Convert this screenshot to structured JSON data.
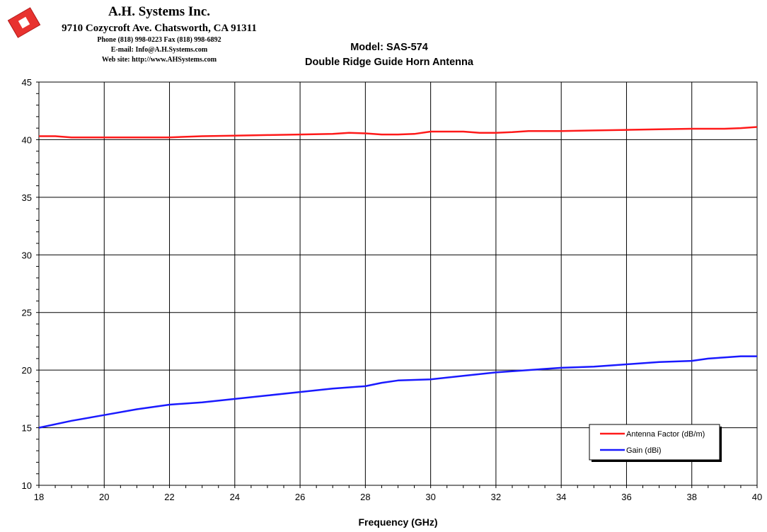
{
  "header": {
    "company": "A.H. Systems Inc.",
    "address": "9710 Cozycroft Ave. Chatsworth, CA 91311",
    "phone": "Phone (818) 998-0223 Fax (818) 998-6892",
    "email": "E-mail: Info@A.H.Systems.com",
    "web": "Web site: http://www.AHSystems.com"
  },
  "colors": {
    "antenna_factor": "#ff1a1a",
    "gain": "#1a1aff",
    "logo": "#e8322f",
    "grid": "#000000"
  },
  "chart_data": {
    "type": "line",
    "title": "Model: SAS-574",
    "subtitle": "Double Ridge Guide Horn Antenna",
    "xlabel": "Frequency (GHz)",
    "ylabel": "",
    "xlim": [
      18,
      40
    ],
    "ylim": [
      10,
      45
    ],
    "xticks": [
      18,
      20,
      22,
      24,
      26,
      28,
      30,
      32,
      34,
      36,
      38,
      40
    ],
    "yticks": [
      10,
      15,
      20,
      25,
      30,
      35,
      40,
      45
    ],
    "grid": true,
    "legend_position": "bottom-right",
    "series": [
      {
        "name": "Antenna Factor (dB/m)",
        "color": "#ff1a1a",
        "x": [
          18,
          18.5,
          19,
          20,
          21,
          22,
          23,
          24,
          25,
          26,
          27,
          27.5,
          28,
          28.5,
          29,
          29.5,
          30,
          31,
          31.5,
          32,
          32.5,
          33,
          34,
          35,
          36,
          37,
          38,
          39,
          39.5,
          40
        ],
        "y": [
          40.3,
          40.3,
          40.2,
          40.2,
          40.2,
          40.2,
          40.3,
          40.35,
          40.4,
          40.45,
          40.5,
          40.6,
          40.55,
          40.45,
          40.45,
          40.5,
          40.7,
          40.7,
          40.6,
          40.6,
          40.65,
          40.75,
          40.75,
          40.8,
          40.85,
          40.9,
          40.95,
          40.95,
          41.0,
          41.1
        ]
      },
      {
        "name": "Gain (dBi)",
        "color": "#1a1aff",
        "x": [
          18,
          19,
          20,
          21,
          22,
          23,
          24,
          25,
          26,
          27,
          28,
          28.5,
          29,
          30,
          31,
          32,
          33,
          34,
          35,
          36,
          37,
          38,
          38.5,
          39,
          39.5,
          40
        ],
        "y": [
          15.0,
          15.6,
          16.1,
          16.6,
          17.0,
          17.2,
          17.5,
          17.8,
          18.1,
          18.4,
          18.6,
          18.9,
          19.1,
          19.2,
          19.5,
          19.8,
          20.0,
          20.2,
          20.3,
          20.5,
          20.7,
          20.8,
          21.0,
          21.1,
          21.2,
          21.2
        ]
      }
    ]
  }
}
